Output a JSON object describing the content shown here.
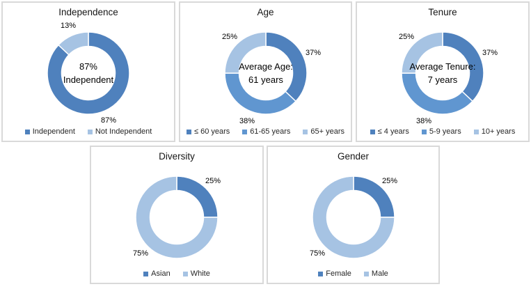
{
  "colors": {
    "dark_blue": "#4F81BD",
    "medium_blue": "#6096D0",
    "light_blue": "#A6C3E3",
    "panel_border": "#D9D9D9",
    "text": "#000000"
  },
  "chart_data": [
    {
      "type": "donut",
      "title": "Independence",
      "legend_position": "bottom",
      "center_lines": [
        "87%",
        "Independent"
      ],
      "segments": [
        {
          "label": "Independent",
          "value": 87,
          "pct_label": "87%",
          "color_key": "dark_blue"
        },
        {
          "label": "Not Independent",
          "value": 13,
          "pct_label": "13%",
          "color_key": "light_blue"
        }
      ]
    },
    {
      "type": "donut",
      "title": "Age",
      "legend_position": "bottom",
      "center_lines": [
        "Average Age:",
        "61 years"
      ],
      "segments": [
        {
          "label": "≤ 60 years",
          "value": 37,
          "pct_label": "37%",
          "color_key": "dark_blue"
        },
        {
          "label": "61-65 years",
          "value": 38,
          "pct_label": "38%",
          "color_key": "medium_blue"
        },
        {
          "label": "65+ years",
          "value": 25,
          "pct_label": "25%",
          "color_key": "light_blue"
        }
      ]
    },
    {
      "type": "donut",
      "title": "Tenure",
      "legend_position": "bottom",
      "center_lines": [
        "Average Tenure:",
        "7 years"
      ],
      "segments": [
        {
          "label": "≤ 4 years",
          "value": 37,
          "pct_label": "37%",
          "color_key": "dark_blue"
        },
        {
          "label": "5-9 years",
          "value": 38,
          "pct_label": "38%",
          "color_key": "medium_blue"
        },
        {
          "label": "10+ years",
          "value": 25,
          "pct_label": "25%",
          "color_key": "light_blue"
        }
      ]
    },
    {
      "type": "donut",
      "title": "Diversity",
      "legend_position": "bottom",
      "center_lines": [],
      "segments": [
        {
          "label": "Asian",
          "value": 25,
          "pct_label": "25%",
          "color_key": "dark_blue"
        },
        {
          "label": "White",
          "value": 75,
          "pct_label": "75%",
          "color_key": "light_blue"
        }
      ]
    },
    {
      "type": "donut",
      "title": "Gender",
      "legend_position": "bottom",
      "center_lines": [],
      "segments": [
        {
          "label": "Female",
          "value": 25,
          "pct_label": "25%",
          "color_key": "dark_blue"
        },
        {
          "label": "Male",
          "value": 75,
          "pct_label": "75%",
          "color_key": "light_blue"
        }
      ]
    }
  ]
}
